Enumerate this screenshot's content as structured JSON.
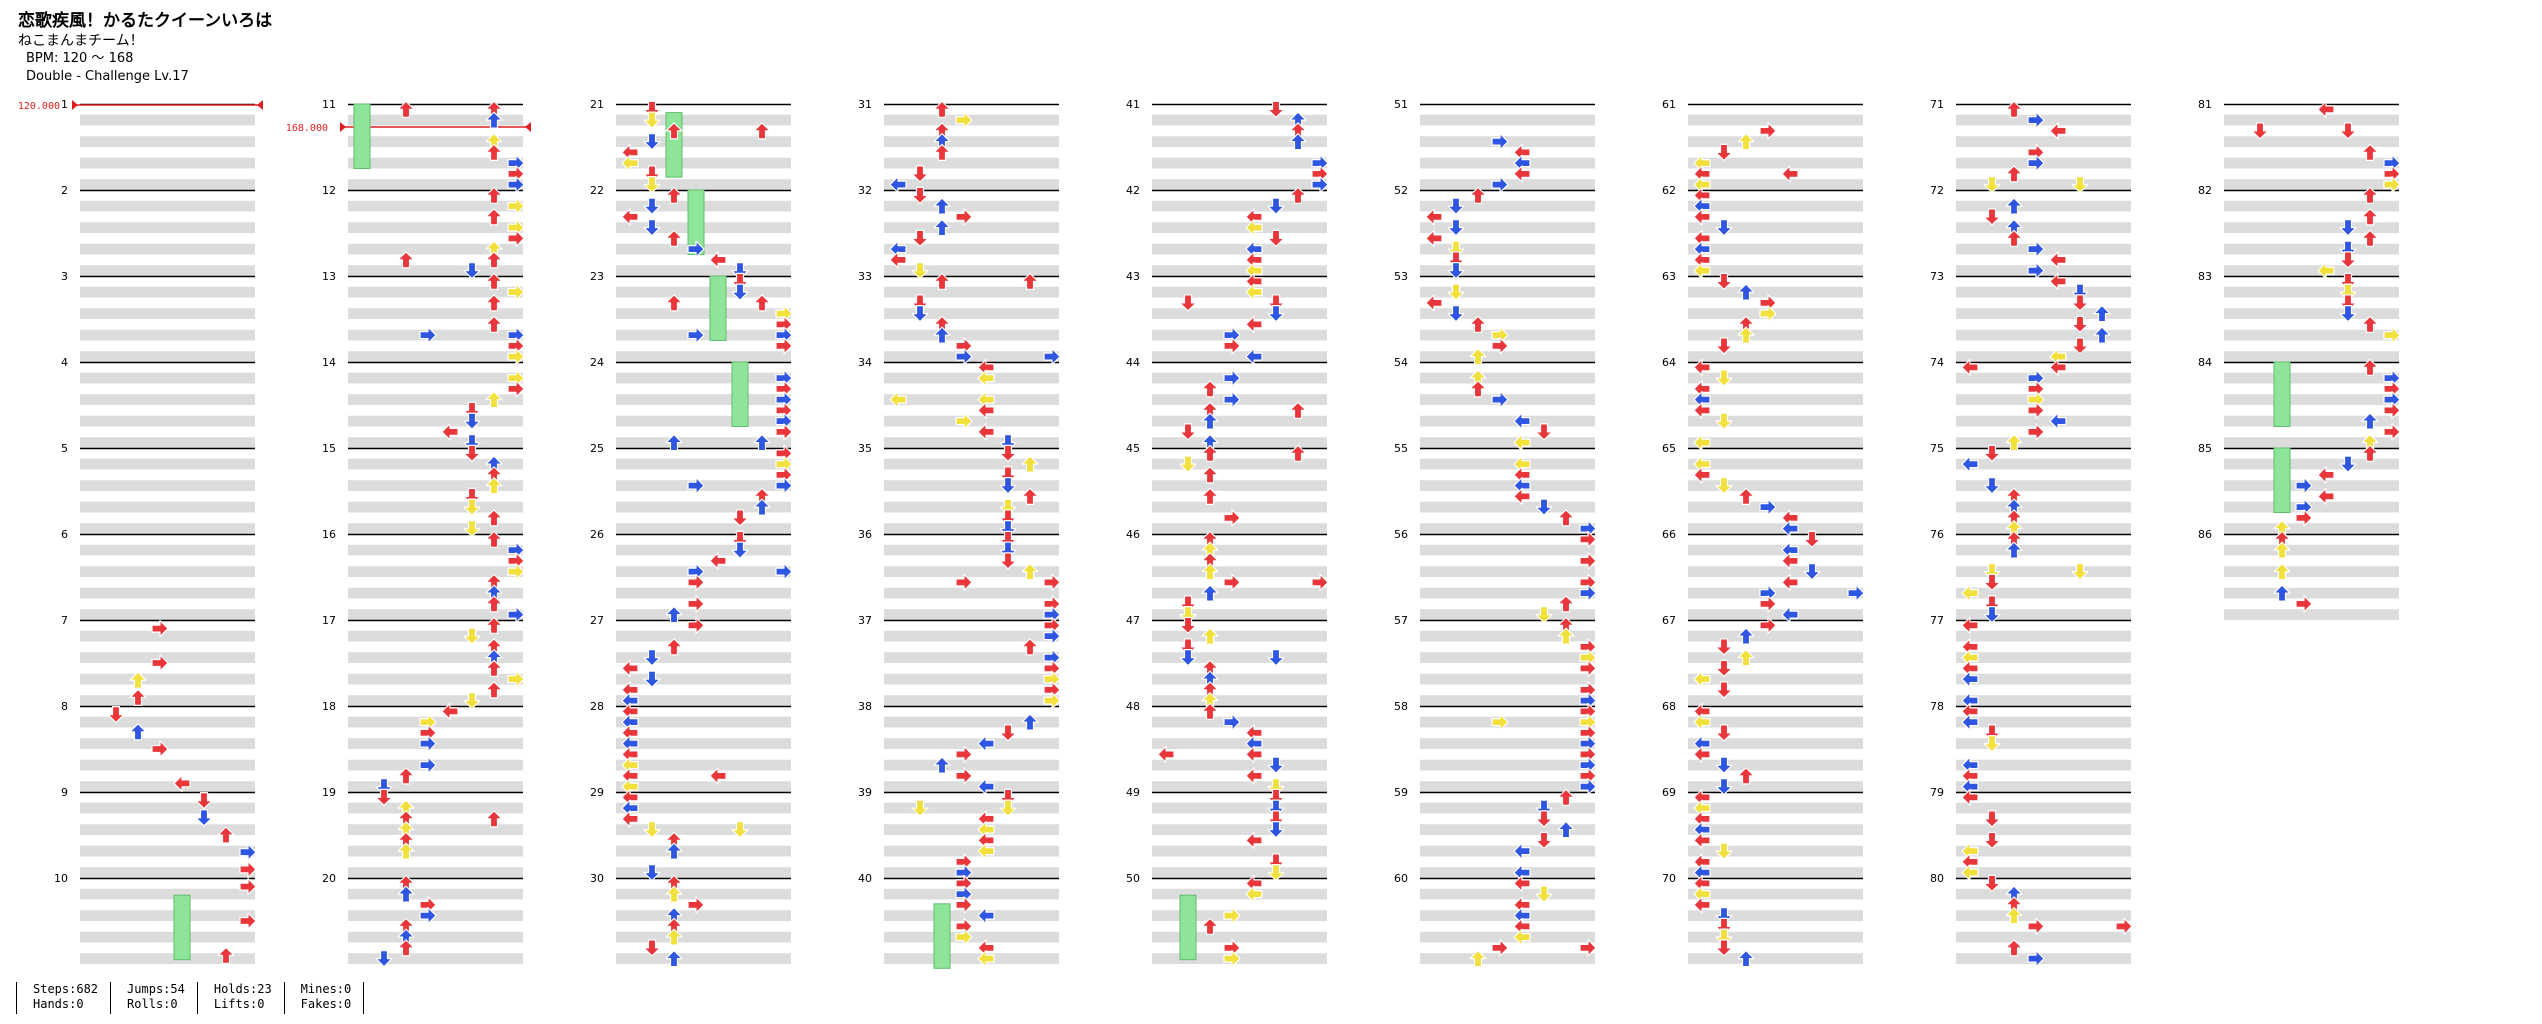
{
  "song": {
    "title": "恋歌疾風！かるたクイーンいろは",
    "artist": "ねこまんまチーム！",
    "bpm_label": "BPM: 120 ～ 168",
    "difficulty_label": "Double - Challenge Lv.17"
  },
  "bpm_changes": [
    {
      "measure": 1,
      "value": "120.000"
    },
    {
      "measure": 11,
      "value": "168.000"
    }
  ],
  "measures": [
    "1",
    "2",
    "3",
    "4",
    "5",
    "6",
    "7",
    "8",
    "9",
    "10",
    "11",
    "12",
    "13",
    "14",
    "15",
    "16",
    "17",
    "18",
    "19",
    "20",
    "21",
    "22",
    "23",
    "24",
    "25",
    "26",
    "27",
    "28",
    "29",
    "30",
    "31",
    "32",
    "33",
    "34",
    "35",
    "36",
    "37",
    "38",
    "39",
    "40",
    "41",
    "42",
    "43",
    "44",
    "45",
    "46",
    "47",
    "48",
    "49",
    "50",
    "51",
    "52",
    "53",
    "54",
    "55",
    "56",
    "57",
    "58",
    "59",
    "60",
    "61",
    "62",
    "63",
    "64",
    "65",
    "66",
    "67",
    "68",
    "69",
    "70",
    "71",
    "72",
    "73",
    "74",
    "75",
    "76",
    "77",
    "78",
    "79",
    "80",
    "81",
    "82",
    "83",
    "84",
    "85",
    "86"
  ],
  "arrow_colors": {
    "quarter": "#e8363a",
    "eighth": "#2f56e0",
    "sixteenth": "#f2e03c",
    "thirtysecond": "#b03cdc",
    "hold": "#8ee59a",
    "bpm_marker": "#e02020"
  },
  "stats": [
    {
      "label": "Steps",
      "value": "682"
    },
    {
      "label": "Hands",
      "value": "0"
    },
    {
      "label": "Jumps",
      "value": "54"
    },
    {
      "label": "Rolls",
      "value": "0"
    },
    {
      "label": "Holds",
      "value": "23"
    },
    {
      "label": "Lifts",
      "value": "0"
    },
    {
      "label": "Mines",
      "value": "0"
    },
    {
      "label": "Fakes",
      "value": "0"
    }
  ]
}
